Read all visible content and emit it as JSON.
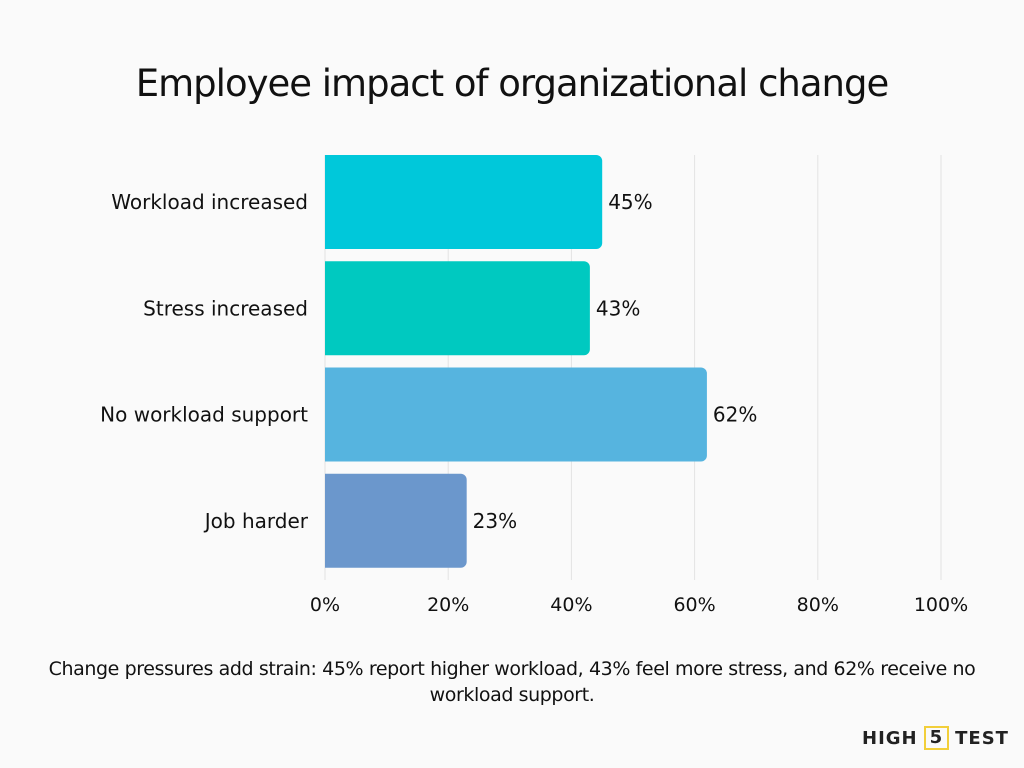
{
  "chart_data": {
    "type": "bar",
    "orientation": "horizontal",
    "title": "Employee impact of organizational change",
    "categories": [
      "Workload increased",
      "Stress increased",
      "No workload support",
      "Job harder"
    ],
    "values": [
      45,
      43,
      62,
      23
    ],
    "data_labels": [
      "45%",
      "43%",
      "62%",
      "23%"
    ],
    "colors": [
      "#00C8DA",
      "#00C9C0",
      "#56B4DF",
      "#6B97CC"
    ],
    "xlim": [
      0,
      100
    ],
    "xticks": [
      0,
      20,
      40,
      60,
      80,
      100
    ],
    "xtick_labels": [
      "0%",
      "20%",
      "40%",
      "60%",
      "80%",
      "100%"
    ],
    "grid": "vertical",
    "xlabel": "",
    "ylabel": ""
  },
  "caption": "Change pressures add strain: 45% report higher workload, 43% feel more stress, and 62% receive no workload support.",
  "logo": {
    "left": "HIGH",
    "mid": "5",
    "right": "TEST"
  }
}
